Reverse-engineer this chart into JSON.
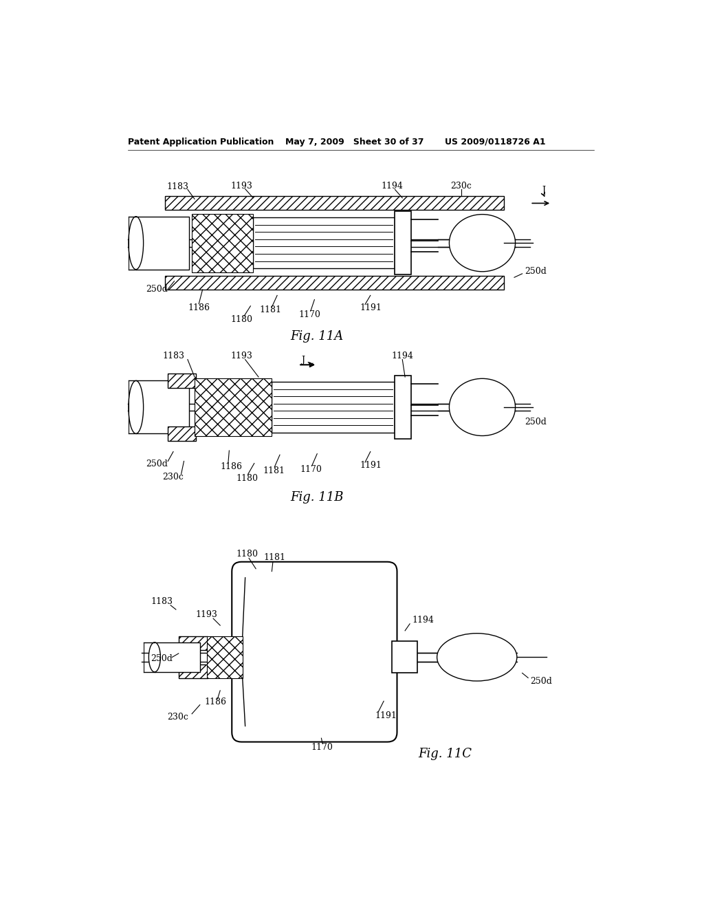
{
  "bg_color": "#ffffff",
  "header_left": "Patent Application Publication",
  "header_mid": "May 7, 2009   Sheet 30 of 37",
  "header_right": "US 2009/0118726 A1",
  "fig11a_label": "Fig. 11A",
  "fig11b_label": "Fig. 11B",
  "fig11c_label": "Fig. 11C"
}
